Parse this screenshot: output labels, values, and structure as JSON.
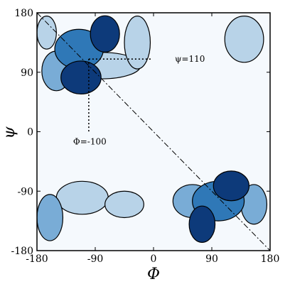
{
  "chart_data": {
    "type": "contour",
    "xlabel": "Φ",
    "ylabel": "ψ",
    "xlim": [
      -180,
      180
    ],
    "ylim": [
      -180,
      180
    ],
    "xticks": [
      -180,
      -90,
      0,
      90,
      180
    ],
    "yticks": [
      -180,
      -90,
      0,
      90,
      180
    ],
    "grid": false,
    "colors": {
      "background": "#f5f9fd",
      "level1": "#b8d3e8",
      "level2": "#79acd6",
      "level3": "#2f78b7",
      "level4": "#0d3a7a",
      "contour_line": "#000000"
    },
    "regions": [
      {
        "center": [
          -75,
          148
        ],
        "size": [
          45,
          55
        ],
        "level": 4
      },
      {
        "center": [
          -115,
          125
        ],
        "size": [
          75,
          60
        ],
        "level": 3
      },
      {
        "center": [
          -112,
          82
        ],
        "size": [
          62,
          50
        ],
        "level": 4
      },
      {
        "center": [
          -150,
          92
        ],
        "size": [
          45,
          60
        ],
        "level": 2
      },
      {
        "center": [
          -80,
          100
        ],
        "size": [
          120,
          40
        ],
        "level": 1
      },
      {
        "center": [
          -25,
          135
        ],
        "size": [
          40,
          80
        ],
        "level": 1
      },
      {
        "center": [
          140,
          140
        ],
        "size": [
          60,
          70
        ],
        "level": 1
      },
      {
        "center": [
          -165,
          150
        ],
        "size": [
          30,
          50
        ],
        "level": 1
      },
      {
        "center": [
          120,
          -82
        ],
        "size": [
          55,
          45
        ],
        "level": 4
      },
      {
        "center": [
          75,
          -140
        ],
        "size": [
          40,
          55
        ],
        "level": 4
      },
      {
        "center": [
          100,
          -105
        ],
        "size": [
          80,
          60
        ],
        "level": 3
      },
      {
        "center": [
          155,
          -110
        ],
        "size": [
          40,
          60
        ],
        "level": 2
      },
      {
        "center": [
          60,
          -105
        ],
        "size": [
          60,
          50
        ],
        "level": 2
      },
      {
        "center": [
          -160,
          -130
        ],
        "size": [
          40,
          70
        ],
        "level": 2
      },
      {
        "center": [
          -110,
          -100
        ],
        "size": [
          80,
          50
        ],
        "level": 1
      },
      {
        "center": [
          -45,
          -110
        ],
        "size": [
          60,
          40
        ],
        "level": 1
      }
    ],
    "reference_lines": [
      {
        "type": "vertical",
        "x": -100,
        "label": "Φ=-100"
      },
      {
        "type": "horizontal",
        "y": 110,
        "label": "ψ=110"
      },
      {
        "type": "diagonal",
        "from": [
          -180,
          180
        ],
        "to": [
          180,
          -180
        ]
      }
    ]
  }
}
